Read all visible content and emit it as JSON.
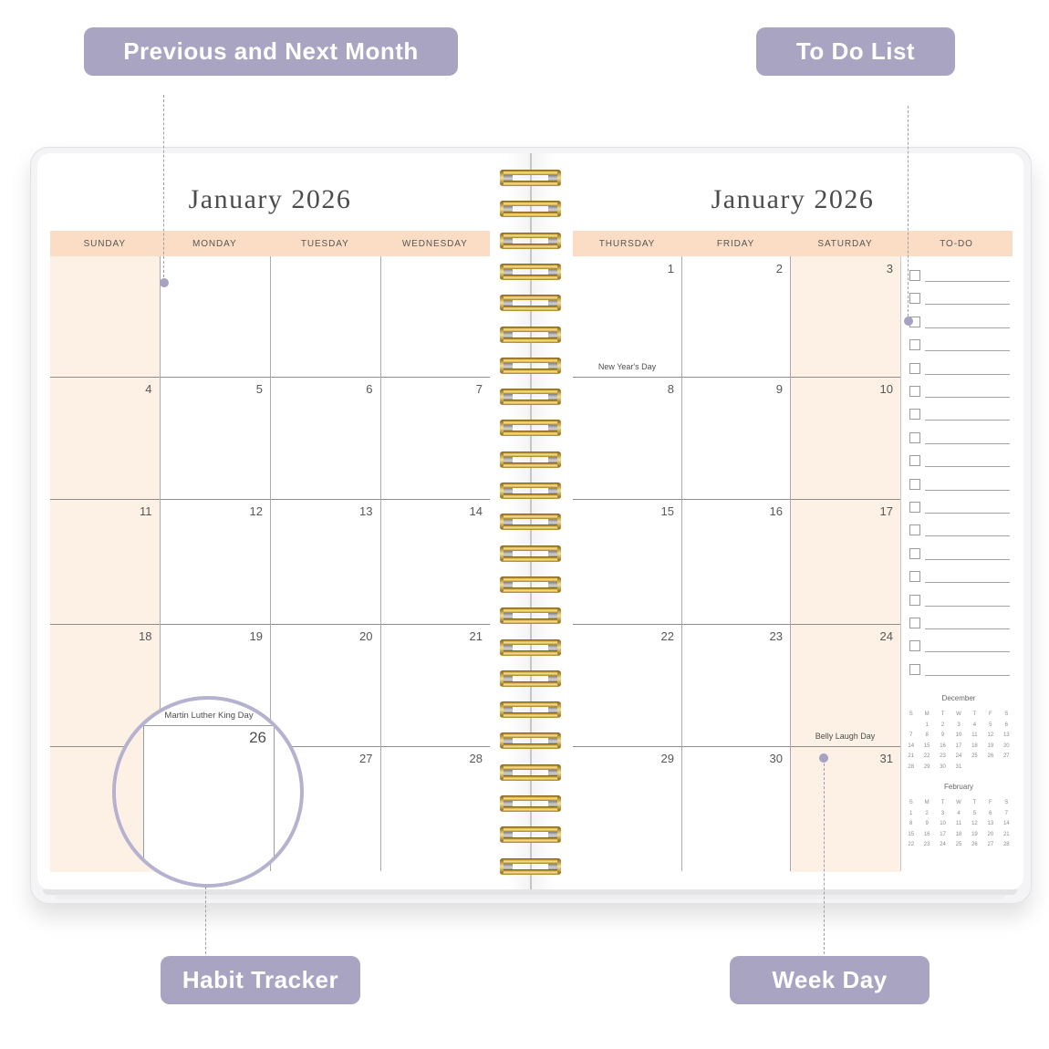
{
  "callouts": {
    "prev_next_label": "Previous and Next Month",
    "todo_label": "To Do List",
    "habit_label": "Habit Tracker",
    "weekday_label": "Week Day"
  },
  "left_page": {
    "title": "January 2026",
    "day_headers": [
      "SUNDAY",
      "MONDAY",
      "TUESDAY",
      "WEDNESDAY"
    ],
    "weeks": [
      [
        "",
        "",
        "",
        ""
      ],
      [
        "4",
        "5",
        "6",
        "7"
      ],
      [
        "11",
        "12",
        "13",
        "14"
      ],
      [
        "18",
        "19",
        "20",
        "21"
      ],
      [
        "",
        "",
        "27",
        "28"
      ]
    ]
  },
  "right_page": {
    "title": "January 2026",
    "day_headers": [
      "THURSDAY",
      "FRIDAY",
      "SATURDAY",
      "TO-DO"
    ],
    "weeks": [
      [
        "1",
        "2",
        "3"
      ],
      [
        "8",
        "9",
        "10"
      ],
      [
        "15",
        "16",
        "17"
      ],
      [
        "22",
        "23",
        "24"
      ],
      [
        "29",
        "30",
        "31"
      ]
    ],
    "holidays": [
      {
        "label": "New Year's Day",
        "week": 0,
        "col": 0
      },
      {
        "label": "Belly Laugh Day",
        "week": 3,
        "col": 2
      }
    ],
    "todo_row_count": 18
  },
  "magnifier": {
    "holiday": "Martin Luther King Day",
    "date": "26"
  },
  "mini_calendars": [
    {
      "title": "December",
      "day_headers": [
        "S",
        "M",
        "T",
        "W",
        "T",
        "F",
        "S"
      ],
      "weeks": [
        [
          "",
          "1",
          "2",
          "3",
          "4",
          "5",
          "6"
        ],
        [
          "7",
          "8",
          "9",
          "10",
          "11",
          "12",
          "13"
        ],
        [
          "14",
          "15",
          "16",
          "17",
          "18",
          "19",
          "20"
        ],
        [
          "21",
          "22",
          "23",
          "24",
          "25",
          "26",
          "27"
        ],
        [
          "28",
          "29",
          "30",
          "31",
          "",
          "",
          ""
        ]
      ]
    },
    {
      "title": "February",
      "day_headers": [
        "S",
        "M",
        "T",
        "W",
        "T",
        "F",
        "S"
      ],
      "weeks": [
        [
          "1",
          "2",
          "3",
          "4",
          "5",
          "6",
          "7"
        ],
        [
          "8",
          "9",
          "10",
          "11",
          "12",
          "13",
          "14"
        ],
        [
          "15",
          "16",
          "17",
          "18",
          "19",
          "20",
          "21"
        ],
        [
          "22",
          "23",
          "24",
          "25",
          "26",
          "27",
          "28"
        ]
      ]
    }
  ],
  "colors": {
    "accent_label": "#a8a4c1",
    "header_peach": "#fbddc5",
    "weekend_tint": "#fdf0e4",
    "spiral_gold": "#d9ad3c",
    "spiral_gold_dark": "#8a6a1f",
    "spiral_gold_light": "#f6e08b"
  }
}
